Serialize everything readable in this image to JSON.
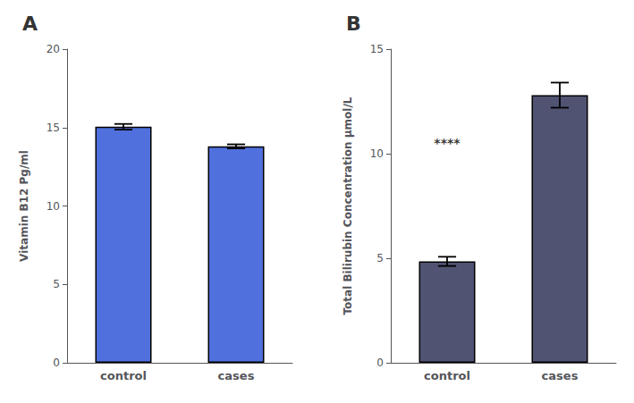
{
  "chart_data": [
    {
      "type": "bar",
      "title": "A",
      "categories": [
        "control",
        "cases"
      ],
      "values": [
        15.05,
        13.8
      ],
      "errors": [
        0.18,
        0.13
      ],
      "ylabel": "Vitamin B12 Pg/ml",
      "ylim": [
        0,
        20
      ],
      "yticks": [
        0,
        5,
        10,
        15,
        20
      ],
      "grid": false
    },
    {
      "type": "bar",
      "title": "B",
      "categories": [
        "control",
        "cases"
      ],
      "values": [
        4.85,
        12.8
      ],
      "errors": [
        0.22,
        0.6
      ],
      "ylabel": "Total Bilirubin Concentration μmol/L",
      "ylim": [
        0,
        15
      ],
      "yticks": [
        0,
        5,
        10,
        15
      ],
      "annotations": [
        {
          "text": "****",
          "x": "control",
          "y": 10.5
        }
      ],
      "grid": false
    }
  ]
}
